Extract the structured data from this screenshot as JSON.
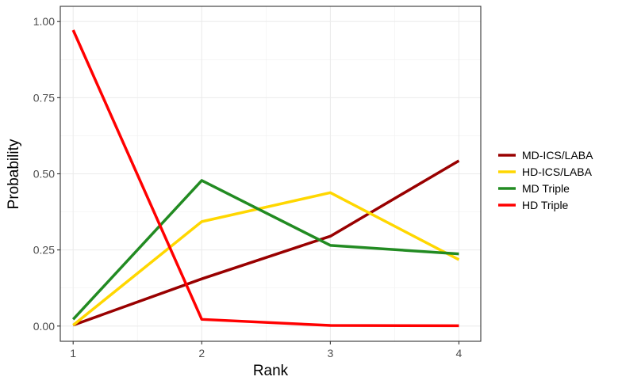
{
  "chart_data": {
    "type": "line",
    "x": [
      1,
      2,
      3,
      4
    ],
    "xlabel": "Rank",
    "ylabel": "Probability",
    "xlim": [
      0.9,
      4.17
    ],
    "ylim": [
      -0.05,
      1.05
    ],
    "x_ticks": [
      "1",
      "2",
      "3",
      "4"
    ],
    "y_ticks": [
      "0.00",
      "0.25",
      "0.50",
      "0.75",
      "1.00"
    ],
    "grid": true,
    "legend_position": "right",
    "series": [
      {
        "name": "MD-ICS/LABA",
        "color": "#990000",
        "values": [
          0.003,
          0.155,
          0.295,
          0.543
        ]
      },
      {
        "name": "HD-ICS/LABA",
        "color": "#ffd700",
        "values": [
          0.003,
          0.343,
          0.438,
          0.218
        ]
      },
      {
        "name": "MD Triple",
        "color": "#228b22",
        "values": [
          0.022,
          0.478,
          0.265,
          0.237
        ]
      },
      {
        "name": "HD Triple",
        "color": "#ff0000",
        "values": [
          0.972,
          0.022,
          0.002,
          0.001
        ]
      }
    ]
  }
}
